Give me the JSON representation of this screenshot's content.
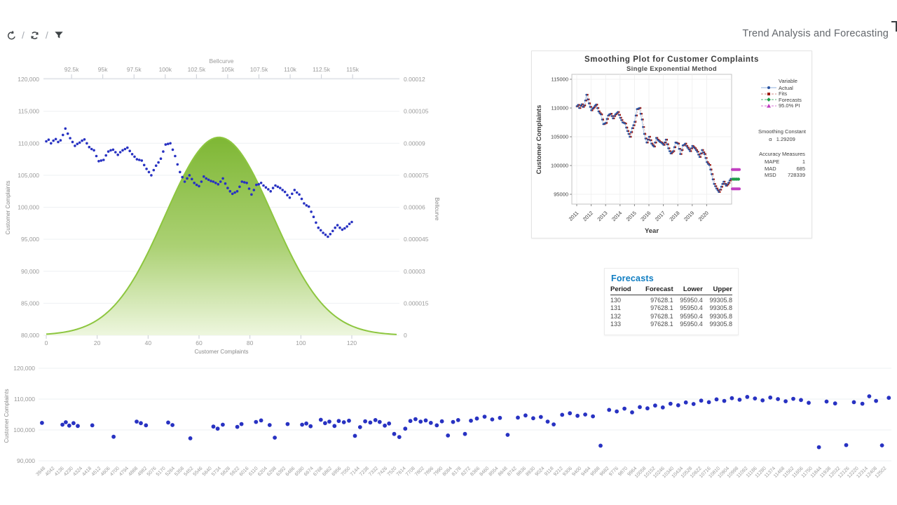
{
  "header": {
    "title": "Trend Analysis and Forecasting",
    "toolbar": {
      "separator": "/"
    }
  },
  "colors": {
    "dot_blue": "#2832c2",
    "bell_stroke": "#8dc63f",
    "bell_top": "#79b42c",
    "bell_mid": "#a8cf6e",
    "bell_bottom": "#edf6dd",
    "actual_blue": "#2b53a0",
    "actual_line": "#8fb2dc",
    "fits_red": "#9f1d15",
    "fits_line": "#d08a84",
    "forecast_green": "#1e9e4a",
    "pi_magenta": "#c13fc1",
    "table_title_blue": "#0f7dc2",
    "tick_text": "#9a9a9a",
    "axis_title": "#8a8a8a",
    "grid": "#eef0f3"
  },
  "chart_data": [
    {
      "id": "complaints-bellcurve",
      "type": "scatter+area",
      "top_axis": {
        "title": "Bellcurve",
        "ticks": [
          "92.5k",
          "95k",
          "97.5k",
          "100k",
          "102.5k",
          "105k",
          "107.5k",
          "110k",
          "112.5k",
          "115k"
        ],
        "tick_values": [
          92500,
          95000,
          97500,
          100000,
          102500,
          105000,
          107500,
          110000,
          112500,
          115000
        ],
        "range": [
          90250,
          118750
        ]
      },
      "left_axis": {
        "title": "Customer Complaints",
        "ticks": [
          "120,000",
          "115,000",
          "110,000",
          "105,000",
          "100,000",
          "95,000",
          "90,000",
          "85,000",
          "80,000"
        ],
        "tick_values": [
          120000,
          115000,
          110000,
          105000,
          100000,
          95000,
          90000,
          85000,
          80000
        ],
        "range": [
          80000,
          120000
        ]
      },
      "right_axis": {
        "title": "Bellcurve",
        "ticks": [
          "0.00012",
          "0.000105",
          "0.00009",
          "0.000075",
          "0.00006",
          "0.000045",
          "0.00003",
          "0.000015",
          "0"
        ],
        "tick_values": [
          0.00012,
          0.000105,
          9e-05,
          7.5e-05,
          6e-05,
          4.5e-05,
          3e-05,
          1.5e-05,
          0
        ],
        "range": [
          0,
          0.00012
        ]
      },
      "bottom_axis": {
        "title": "Customer Complaints",
        "ticks": [
          0,
          20,
          40,
          60,
          80,
          100,
          120
        ],
        "range": [
          0,
          139
        ]
      },
      "series": {
        "name": "Customer Complaints",
        "values": [
          110300,
          110550,
          110000,
          110400,
          110650,
          110200,
          110450,
          111300,
          112300,
          111500,
          110800,
          110200,
          109600,
          109900,
          110100,
          110400,
          110600,
          110000,
          109400,
          109100,
          108900,
          108000,
          107200,
          107300,
          107400,
          108100,
          108700,
          108900,
          109000,
          108600,
          108200,
          108600,
          108900,
          109100,
          109300,
          108800,
          108300,
          107900,
          107500,
          107400,
          107300,
          106600,
          106000,
          105500,
          105000,
          105800,
          106500,
          107000,
          107600,
          108700,
          109800,
          109900,
          110000,
          109000,
          108000,
          106700,
          105500,
          104700,
          104000,
          104500,
          105000,
          104400,
          103800,
          103500,
          103300,
          104000,
          104800,
          104500,
          104300,
          104100,
          104000,
          103800,
          103600,
          104000,
          104500,
          103700,
          103000,
          102500,
          102100,
          102300,
          102500,
          103200,
          104000,
          103900,
          103800,
          102900,
          102000,
          102700,
          103500,
          103600,
          103800,
          103400,
          103100,
          102800,
          102500,
          103000,
          103400,
          103200,
          103000,
          102700,
          102400,
          101900,
          101500,
          102100,
          102700,
          102300,
          102000,
          101300,
          100600,
          100300,
          100100,
          99300,
          98500,
          97600,
          96800,
          96400,
          96000,
          95700,
          95400,
          95800,
          96300,
          96800,
          97200,
          96800,
          96500,
          96700,
          97000,
          97400,
          97700
        ]
      },
      "bellcurve": {
        "mean": 104300,
        "sd": 4300,
        "peak": 9.28e-05
      }
    },
    {
      "id": "smoothing-plot",
      "type": "line",
      "title": "Smoothing Plot for Customer Complaints",
      "subtitle": "Single Exponential Method",
      "xlabel": "Year",
      "ylabel": "Customer Complaints",
      "x_ticks": [
        2011,
        2012,
        2013,
        2014,
        2015,
        2016,
        2017,
        2018,
        2019,
        2020
      ],
      "y_ticks": [
        115000,
        110000,
        105000,
        100000,
        95000
      ],
      "x_start_year": 2011,
      "legend": {
        "title": "Variable",
        "items": [
          {
            "label": "Actual",
            "marker": "circle",
            "color": "#2b53a0"
          },
          {
            "label": "Fits",
            "marker": "square",
            "color": "#9f1d15"
          },
          {
            "label": "Forecasts",
            "marker": "diamond",
            "color": "#1e9e4a"
          },
          {
            "label": "95.0% PI",
            "marker": "triangle",
            "color": "#c13fc1"
          }
        ]
      },
      "smoothing_constant": {
        "title": "Smoothing Constant",
        "symbol": "α",
        "value": "1.29209"
      },
      "accuracy_measures": {
        "title": "Accuracy Measures",
        "rows": [
          [
            "MAPE",
            "1"
          ],
          [
            "MAD",
            "685"
          ],
          [
            "MSD",
            "728339"
          ]
        ]
      },
      "series_source": "complaints-bellcurve",
      "fits_rule": "fit[i] = actual[i-1]",
      "forecast": {
        "periods": [
          130,
          131,
          132,
          133
        ],
        "forecast": 97628.1,
        "lower": 95950.4,
        "upper": 99305.8
      }
    },
    {
      "id": "complaints-by-id-scatter",
      "type": "scatter",
      "ylabel": "Customer Complaints",
      "y_ticks_labels": [
        "120,000",
        "110,000",
        "100,000",
        "90,000"
      ],
      "y_tick_values": [
        120000,
        110000,
        100000,
        90000
      ],
      "x_tick_labels": [
        3948,
        4042,
        4136,
        4230,
        4324,
        4418,
        4512,
        4606,
        4700,
        4794,
        4888,
        4982,
        5076,
        5170,
        5264,
        5358,
        5452,
        5546,
        5640,
        5734,
        5828,
        5922,
        6016,
        6110,
        6204,
        6298,
        6392,
        6486,
        6580,
        6674,
        6768,
        6862,
        6956,
        7050,
        7144,
        7238,
        7332,
        7426,
        7520,
        7614,
        7708,
        7802,
        7896,
        7990,
        8084,
        8178,
        8272,
        8366,
        8460,
        8554,
        8648,
        8742,
        8836,
        8930,
        9024,
        9118,
        9212,
        9306,
        9400,
        9494,
        9588,
        9682,
        9776,
        9870,
        9964,
        10058,
        10152,
        10246,
        10340,
        10434,
        10528,
        10622,
        10716,
        10810,
        10904,
        10998,
        11092,
        11186,
        11280,
        11374,
        11468,
        11562,
        11656,
        11750,
        11844,
        11938,
        12032,
        12126,
        12220,
        12314,
        12408,
        12502
      ],
      "points": [
        [
          0.4,
          102300
        ],
        [
          2.8,
          101700
        ],
        [
          3.2,
          102500
        ],
        [
          3.6,
          101400
        ],
        [
          4.1,
          102200
        ],
        [
          4.6,
          101300
        ],
        [
          6.3,
          101500
        ],
        [
          8.8,
          97800
        ],
        [
          11.5,
          102700
        ],
        [
          12.0,
          102200
        ],
        [
          12.6,
          101500
        ],
        [
          15.2,
          102400
        ],
        [
          15.7,
          101600
        ],
        [
          17.8,
          97300
        ],
        [
          20.5,
          101100
        ],
        [
          21.0,
          100400
        ],
        [
          21.6,
          101700
        ],
        [
          23.3,
          101000
        ],
        [
          23.8,
          101900
        ],
        [
          25.5,
          102600
        ],
        [
          26.1,
          103100
        ],
        [
          27.1,
          101600
        ],
        [
          27.7,
          97500
        ],
        [
          29.2,
          101900
        ],
        [
          30.9,
          101700
        ],
        [
          31.4,
          102100
        ],
        [
          31.9,
          101200
        ],
        [
          33.1,
          103300
        ],
        [
          33.6,
          102200
        ],
        [
          34.1,
          102700
        ],
        [
          34.7,
          101300
        ],
        [
          35.2,
          102900
        ],
        [
          35.8,
          102500
        ],
        [
          36.4,
          103000
        ],
        [
          37.1,
          98100
        ],
        [
          37.7,
          100900
        ],
        [
          38.3,
          102800
        ],
        [
          38.9,
          102400
        ],
        [
          39.5,
          103200
        ],
        [
          40.0,
          102600
        ],
        [
          40.6,
          101400
        ],
        [
          41.1,
          102100
        ],
        [
          41.7,
          98700
        ],
        [
          42.3,
          97700
        ],
        [
          43.0,
          100400
        ],
        [
          43.6,
          102900
        ],
        [
          44.2,
          103500
        ],
        [
          44.8,
          102700
        ],
        [
          45.4,
          103100
        ],
        [
          46.0,
          102300
        ],
        [
          46.7,
          101500
        ],
        [
          47.3,
          102800
        ],
        [
          48.0,
          98200
        ],
        [
          48.6,
          102600
        ],
        [
          49.2,
          103200
        ],
        [
          50.0,
          98700
        ],
        [
          50.7,
          103000
        ],
        [
          51.4,
          103700
        ],
        [
          52.3,
          104300
        ],
        [
          53.2,
          103400
        ],
        [
          54.1,
          103900
        ],
        [
          55.0,
          98400
        ],
        [
          56.2,
          104000
        ],
        [
          57.1,
          104700
        ],
        [
          58.0,
          103800
        ],
        [
          58.9,
          104200
        ],
        [
          59.7,
          102700
        ],
        [
          60.4,
          101800
        ],
        [
          61.4,
          104900
        ],
        [
          62.3,
          105400
        ],
        [
          63.2,
          104600
        ],
        [
          64.1,
          105000
        ],
        [
          65.0,
          104400
        ],
        [
          65.9,
          94900
        ],
        [
          66.9,
          106500
        ],
        [
          67.8,
          106000
        ],
        [
          68.7,
          106900
        ],
        [
          69.6,
          105700
        ],
        [
          70.5,
          107400
        ],
        [
          71.4,
          107000
        ],
        [
          72.3,
          107900
        ],
        [
          73.2,
          107300
        ],
        [
          74.1,
          108500
        ],
        [
          75.0,
          108000
        ],
        [
          75.9,
          108900
        ],
        [
          76.8,
          108400
        ],
        [
          77.7,
          109500
        ],
        [
          78.6,
          109000
        ],
        [
          79.5,
          109900
        ],
        [
          80.4,
          109400
        ],
        [
          81.3,
          110300
        ],
        [
          82.2,
          109800
        ],
        [
          83.1,
          110700
        ],
        [
          84.0,
          110200
        ],
        [
          84.9,
          109600
        ],
        [
          85.8,
          110500
        ],
        [
          86.7,
          110000
        ],
        [
          87.6,
          109300
        ],
        [
          88.5,
          110100
        ],
        [
          89.4,
          109700
        ],
        [
          90.3,
          108800
        ],
        [
          91.5,
          94400
        ],
        [
          92.4,
          109200
        ],
        [
          93.4,
          108600
        ],
        [
          94.7,
          95100
        ],
        [
          95.6,
          109000
        ],
        [
          96.6,
          108500
        ],
        [
          97.4,
          110900
        ],
        [
          98.2,
          109400
        ],
        [
          98.9,
          95000
        ],
        [
          99.7,
          110400
        ]
      ]
    }
  ],
  "forecasts_table": {
    "title": "Forecasts",
    "columns": [
      "Period",
      "Forecast",
      "Lower",
      "Upper"
    ],
    "rows": [
      [
        "130",
        "97628.1",
        "95950.4",
        "99305.8"
      ],
      [
        "131",
        "97628.1",
        "95950.4",
        "99305.8"
      ],
      [
        "132",
        "97628.1",
        "95950.4",
        "99305.8"
      ],
      [
        "133",
        "97628.1",
        "95950.4",
        "99305.8"
      ]
    ]
  }
}
